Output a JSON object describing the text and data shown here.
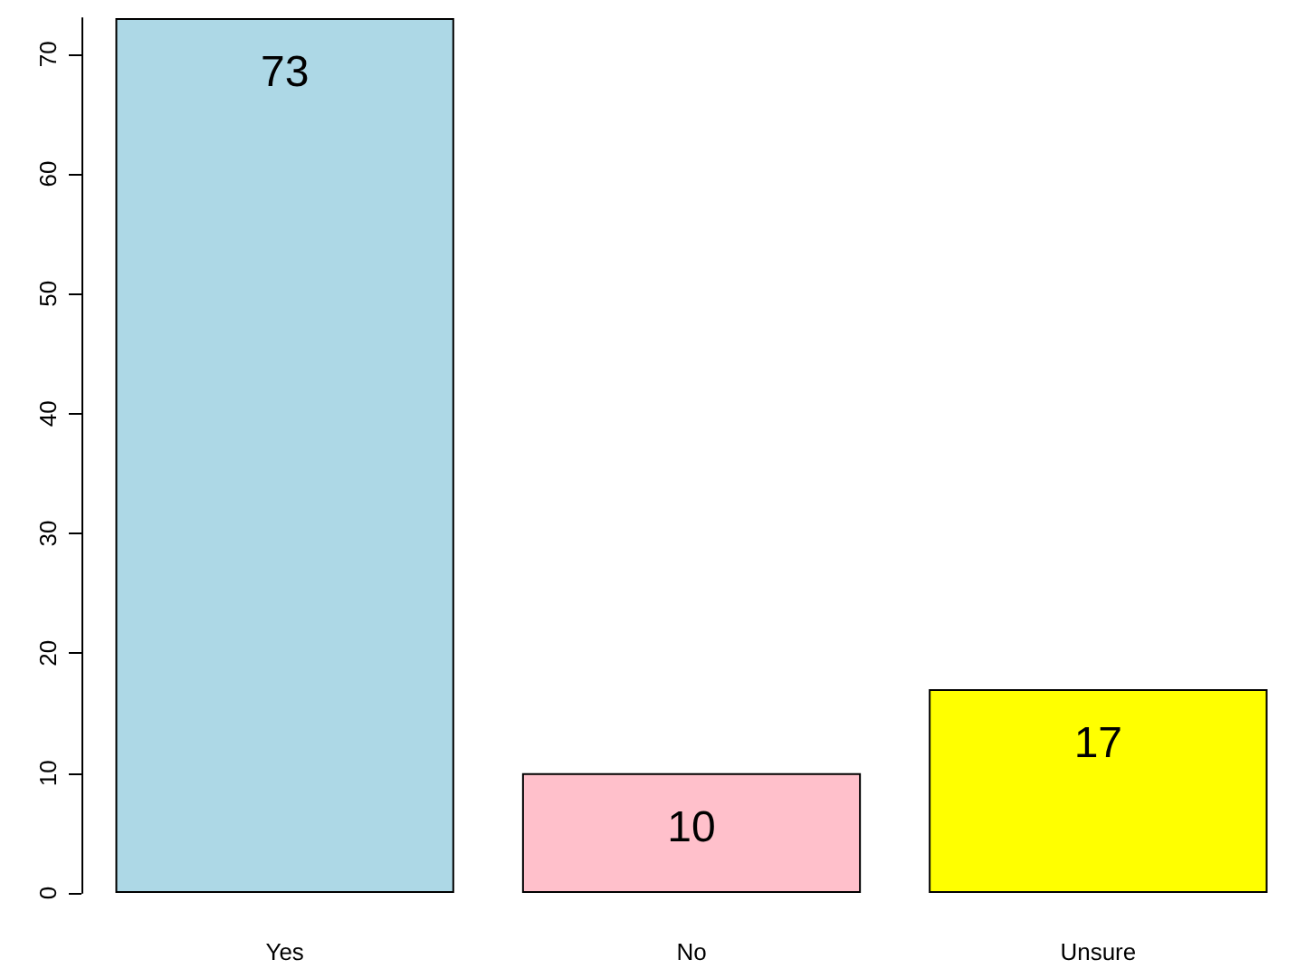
{
  "chart_data": {
    "type": "bar",
    "categories": [
      "Yes",
      "No",
      "Unsure"
    ],
    "values": [
      73,
      10,
      17
    ],
    "colors": [
      "#add8e6",
      "#ffc0cb",
      "#ffff00"
    ],
    "ylim": [
      0,
      73
    ],
    "yticks": [
      0,
      10,
      20,
      30,
      40,
      50,
      60,
      70
    ],
    "data_labels": true,
    "grid": false
  }
}
